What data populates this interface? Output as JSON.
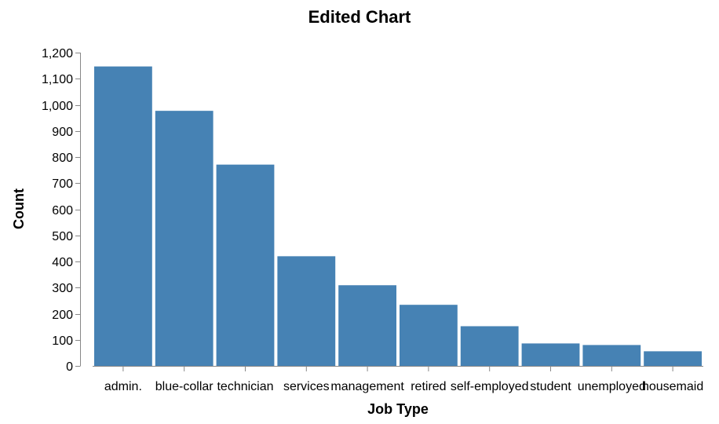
{
  "chart_data": {
    "type": "bar",
    "title": "Edited Chart",
    "xlabel": "Job Type",
    "ylabel": "Count",
    "categories": [
      "admin.",
      "blue-collar",
      "technician",
      "services",
      "management",
      "retired",
      "self-employed",
      "student",
      "unemployed",
      "housemaid"
    ],
    "values": [
      1147,
      977,
      771,
      420,
      309,
      234,
      152,
      86,
      80,
      56
    ],
    "ylim": [
      0,
      1200
    ],
    "yticks": [
      0,
      100,
      200,
      300,
      400,
      500,
      600,
      700,
      800,
      900,
      1000,
      1100,
      1200
    ],
    "ytick_labels": [
      "0",
      "100",
      "200",
      "300",
      "400",
      "500",
      "600",
      "700",
      "800",
      "900",
      "1,000",
      "1,100",
      "1,200"
    ],
    "bar_color": "#4682b4",
    "grid": false,
    "legend": "none"
  }
}
